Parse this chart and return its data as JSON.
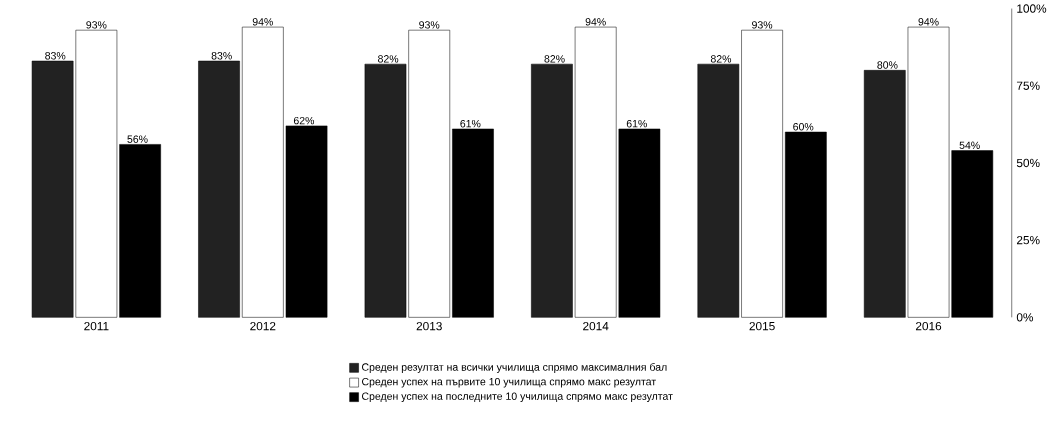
{
  "chart_data": {
    "type": "bar",
    "categories": [
      "2011",
      "2012",
      "2013",
      "2014",
      "2015",
      "2016"
    ],
    "series": [
      {
        "name": "Среден резултат на всички училища спрямо максималния бал",
        "color": "#222222",
        "values": [
          83,
          83,
          82,
          82,
          82,
          80
        ],
        "value_labels": [
          "83%",
          "83%",
          "82%",
          "82%",
          "82%",
          "80%"
        ]
      },
      {
        "name": "Среден успех на първите 10 училища спрямо макс резултат",
        "color": "#ffffff",
        "values": [
          93,
          94,
          93,
          94,
          93,
          94
        ],
        "value_labels": [
          "93%",
          "94%",
          "93%",
          "94%",
          "93%",
          "94%"
        ]
      },
      {
        "name": "Среден успех на последните 10 училища спрямо макс резултат",
        "color": "#000000",
        "values": [
          56,
          62,
          61,
          61,
          60,
          54
        ],
        "value_labels": [
          "56%",
          "62%",
          "61%",
          "61%",
          "60%",
          "54%"
        ]
      }
    ],
    "ylim": [
      0,
      100
    ],
    "yticks": [
      {
        "value": 0,
        "label": "0%"
      },
      {
        "value": 25,
        "label": "25%"
      },
      {
        "value": 50,
        "label": "50%"
      },
      {
        "value": 75,
        "label": "75%"
      },
      {
        "value": 100,
        "label": "100%"
      }
    ],
    "grid": false,
    "legend": "bottom"
  }
}
